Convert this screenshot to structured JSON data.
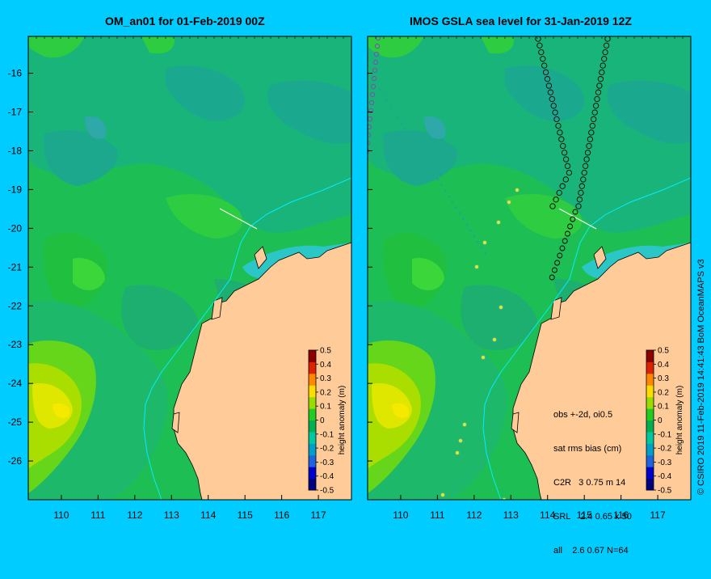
{
  "left_panel": {
    "title": "OM_an01 for 01-Feb-2019 00Z"
  },
  "right_panel": {
    "title": "IMOS GSLA sea level  for 31-Jan-2019 12Z",
    "stats_lines": [
      "obs +-2d, oi0.5",
      "sat rms bias (cm)",
      "C2R   3 0.75 m 14",
      "SRL    2.4 0.65 k 50",
      "all    2.6 0.67 N=64"
    ]
  },
  "credit": "© CSIRO 2019  11-Feb-2019 14:41:43 BoM OceanMAPS v3",
  "axes": {
    "x_ticks": [
      "110",
      "111",
      "112",
      "113",
      "114",
      "115",
      "116",
      "117"
    ],
    "y_ticks": [
      "-16",
      "-17",
      "-18",
      "-19",
      "-20",
      "-21",
      "-22",
      "-23",
      "-24",
      "-25",
      "-26"
    ]
  },
  "colorbar": {
    "label": "height anomaly (m)",
    "ticks": [
      "0.5",
      "0.4",
      "0.3",
      "0.2",
      "0.1",
      "0",
      "-0.1",
      "-0.2",
      "-0.3",
      "-0.4",
      "-0.5"
    ],
    "range": [
      -0.5,
      0.5
    ],
    "colors": [
      "#000080",
      "#0000cd",
      "#1e64dc",
      "#00a0c8",
      "#00c8a0",
      "#00b050",
      "#22cc22",
      "#99dd00",
      "#ffdd00",
      "#ff8800",
      "#dd2200",
      "#8b0000"
    ]
  },
  "colors": {
    "background": "#00ccff",
    "land": "#ffcc99",
    "coast_track": "#00eeff"
  }
}
